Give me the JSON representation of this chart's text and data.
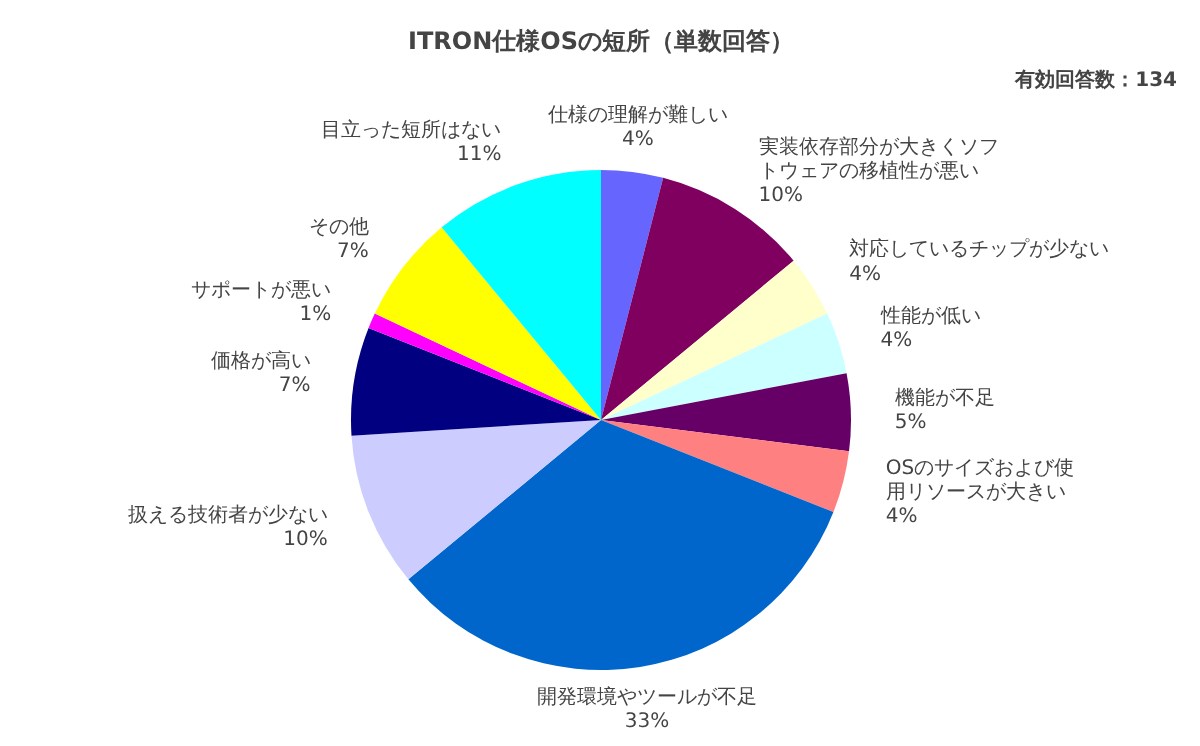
{
  "chart_data": {
    "type": "pie",
    "title": "ITRON仕様OSの短所（単数回答）",
    "annotations": [
      "有効回答数：134"
    ],
    "categories": [
      "仕様の理解が難しい",
      "実装依存部分が大きくソフトウェアの移植性が悪い",
      "対応しているチップが少ない",
      "性能が低い",
      "機能が不足",
      "OSのサイズおよび使用リソースが大きい",
      "開発環境やツールが不足",
      "扱える技術者が少ない",
      "価格が高い",
      "サポートが悪い",
      "その他",
      "目立った短所はない"
    ],
    "values": [
      4,
      10,
      4,
      4,
      5,
      4,
      33,
      10,
      7,
      1,
      7,
      11
    ],
    "value_labels": [
      "4%",
      "10%",
      "4%",
      "4%",
      "5%",
      "4%",
      "33%",
      "10%",
      "7%",
      "1%",
      "7%",
      "11%"
    ],
    "colors": [
      "#6666ff",
      "#800060",
      "#ffffcc",
      "#ccffff",
      "#660066",
      "#ff8080",
      "#0066cc",
      "#ccccff",
      "#000080",
      "#ff00ff",
      "#ffff00",
      "#00ffff"
    ],
    "legend": false
  }
}
